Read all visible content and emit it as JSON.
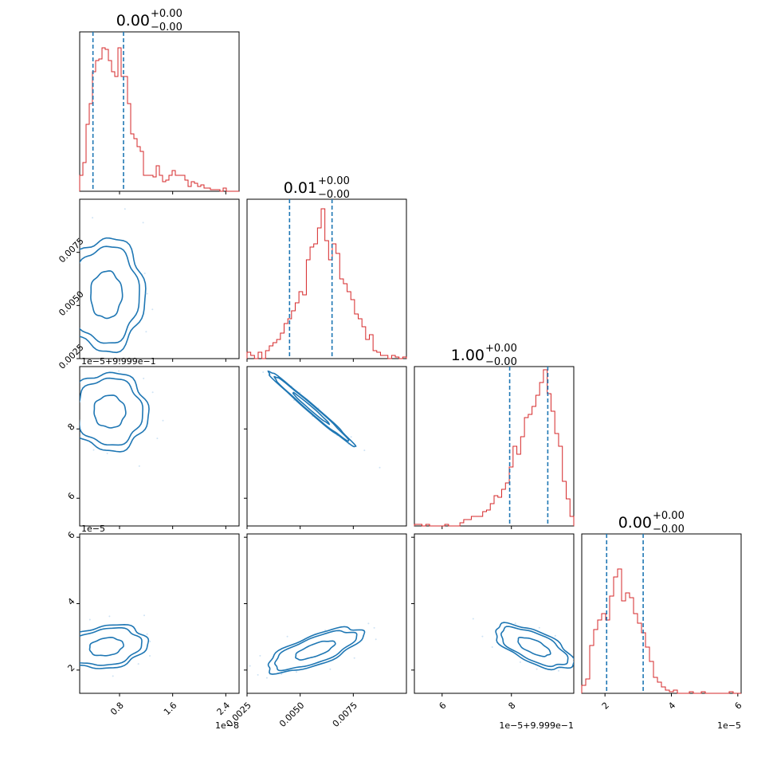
{
  "colors": {
    "hist": "#d62728",
    "quantile": "#1f77b4",
    "contour": "#1f77b4",
    "scatter": "#cfe3f4",
    "frame": "#000000"
  },
  "chart_data": {
    "type": "corner",
    "grid": false,
    "dims": [
      {
        "ticks": [
          "0.8",
          "1.6",
          "2.4"
        ],
        "offset": "1e−8",
        "range": [
          0.2,
          2.6
        ],
        "title": {
          "main": "0.00",
          "sup": "+0.00",
          "sub": "−0.00"
        },
        "quantiles": [
          0.4,
          0.86
        ]
      },
      {
        "ticks": [
          "0.0025",
          "0.0050",
          "0.0075"
        ],
        "offset": "",
        "range": [
          0.0025,
          0.01
        ],
        "title": {
          "main": "0.01",
          "sup": "+0.00",
          "sub": "−0.00"
        },
        "quantiles": [
          0.0045,
          0.0065
        ]
      },
      {
        "ticks": [
          "6",
          "8"
        ],
        "offset": "1e−5+9.999e−1",
        "range": [
          5.2,
          9.8
        ],
        "title": {
          "main": "1.00",
          "sup": "+0.00",
          "sub": "−0.00"
        },
        "quantiles": [
          7.95,
          9.05
        ]
      },
      {
        "ticks": [
          "2",
          "4",
          "6"
        ],
        "offset": "1e−5",
        "range": [
          1.3,
          6.1
        ],
        "title": {
          "main": "0.00",
          "sup": "+0.00",
          "sub": "−0.00"
        },
        "quantiles": [
          2.05,
          3.15
        ]
      }
    ],
    "histograms": [
      [
        0.1,
        0.18,
        0.42,
        0.55,
        0.75,
        0.82,
        0.83,
        0.9,
        0.89,
        0.82,
        0.75,
        0.72,
        0.9,
        0.72,
        0.72,
        0.55,
        0.36,
        0.33,
        0.28,
        0.25,
        0.1,
        0.1,
        0.1,
        0.09,
        0.16,
        0.1,
        0.06,
        0.07,
        0.1,
        0.13,
        0.1,
        0.1,
        0.1,
        0.07,
        0.03,
        0.06,
        0.05,
        0.03,
        0.04,
        0.02,
        0.02,
        0.01,
        0.01,
        0.01,
        0.0,
        0.02,
        0.0,
        0.0,
        0.0,
        0.0
      ],
      [
        0.04,
        0.02,
        0.0,
        0.04,
        0.0,
        0.05,
        0.08,
        0.1,
        0.12,
        0.16,
        0.22,
        0.25,
        0.3,
        0.35,
        0.42,
        0.4,
        0.62,
        0.7,
        0.72,
        0.82,
        0.94,
        0.74,
        0.62,
        0.72,
        0.66,
        0.5,
        0.47,
        0.42,
        0.37,
        0.28,
        0.25,
        0.2,
        0.12,
        0.15,
        0.05,
        0.04,
        0.02,
        0.02,
        0.0,
        0.02,
        0.01,
        0.0,
        0.01
      ],
      [
        0.01,
        0.01,
        0.0,
        0.01,
        0.0,
        0.0,
        0.0,
        0.0,
        0.01,
        0.0,
        0.0,
        0.0,
        0.02,
        0.04,
        0.04,
        0.06,
        0.06,
        0.06,
        0.09,
        0.1,
        0.14,
        0.19,
        0.18,
        0.23,
        0.27,
        0.37,
        0.5,
        0.45,
        0.56,
        0.68,
        0.7,
        0.75,
        0.82,
        0.9,
        0.98,
        0.83,
        0.72,
        0.58,
        0.5,
        0.28,
        0.17,
        0.06
      ],
      [
        0.05,
        0.09,
        0.3,
        0.4,
        0.46,
        0.5,
        0.46,
        0.61,
        0.73,
        0.78,
        0.58,
        0.63,
        0.6,
        0.5,
        0.44,
        0.38,
        0.29,
        0.2,
        0.1,
        0.07,
        0.04,
        0.02,
        0.01,
        0.02,
        0.0,
        0.0,
        0.0,
        0.01,
        0.0,
        0.0,
        0.01,
        0.0,
        0.0,
        0.0,
        0.0,
        0.0,
        0.0,
        0.01,
        0.0,
        0.0
      ]
    ],
    "contours": [
      {
        "row": 1,
        "col": 0,
        "center": [
          0.6,
          0.0055
        ],
        "sigma": [
          0.28,
          0.0013
        ],
        "rho": 0.02
      },
      {
        "row": 2,
        "col": 0,
        "center": [
          0.65,
          8.5
        ],
        "sigma": [
          0.28,
          0.55
        ],
        "rho": -0.02
      },
      {
        "row": 2,
        "col": 1,
        "center": [
          0.0055,
          8.6
        ],
        "sigma": [
          0.001,
          0.53
        ],
        "rho": -0.99
      },
      {
        "row": 3,
        "col": 0,
        "center": [
          0.6,
          2.7
        ],
        "sigma": [
          0.3,
          0.32
        ],
        "rho": 0.2
      },
      {
        "row": 3,
        "col": 1,
        "center": [
          0.0057,
          2.6
        ],
        "sigma": [
          0.0011,
          0.33
        ],
        "rho": 0.72
      },
      {
        "row": 3,
        "col": 2,
        "center": [
          8.65,
          2.7
        ],
        "sigma": [
          0.55,
          0.33
        ],
        "rho": -0.65
      }
    ]
  }
}
